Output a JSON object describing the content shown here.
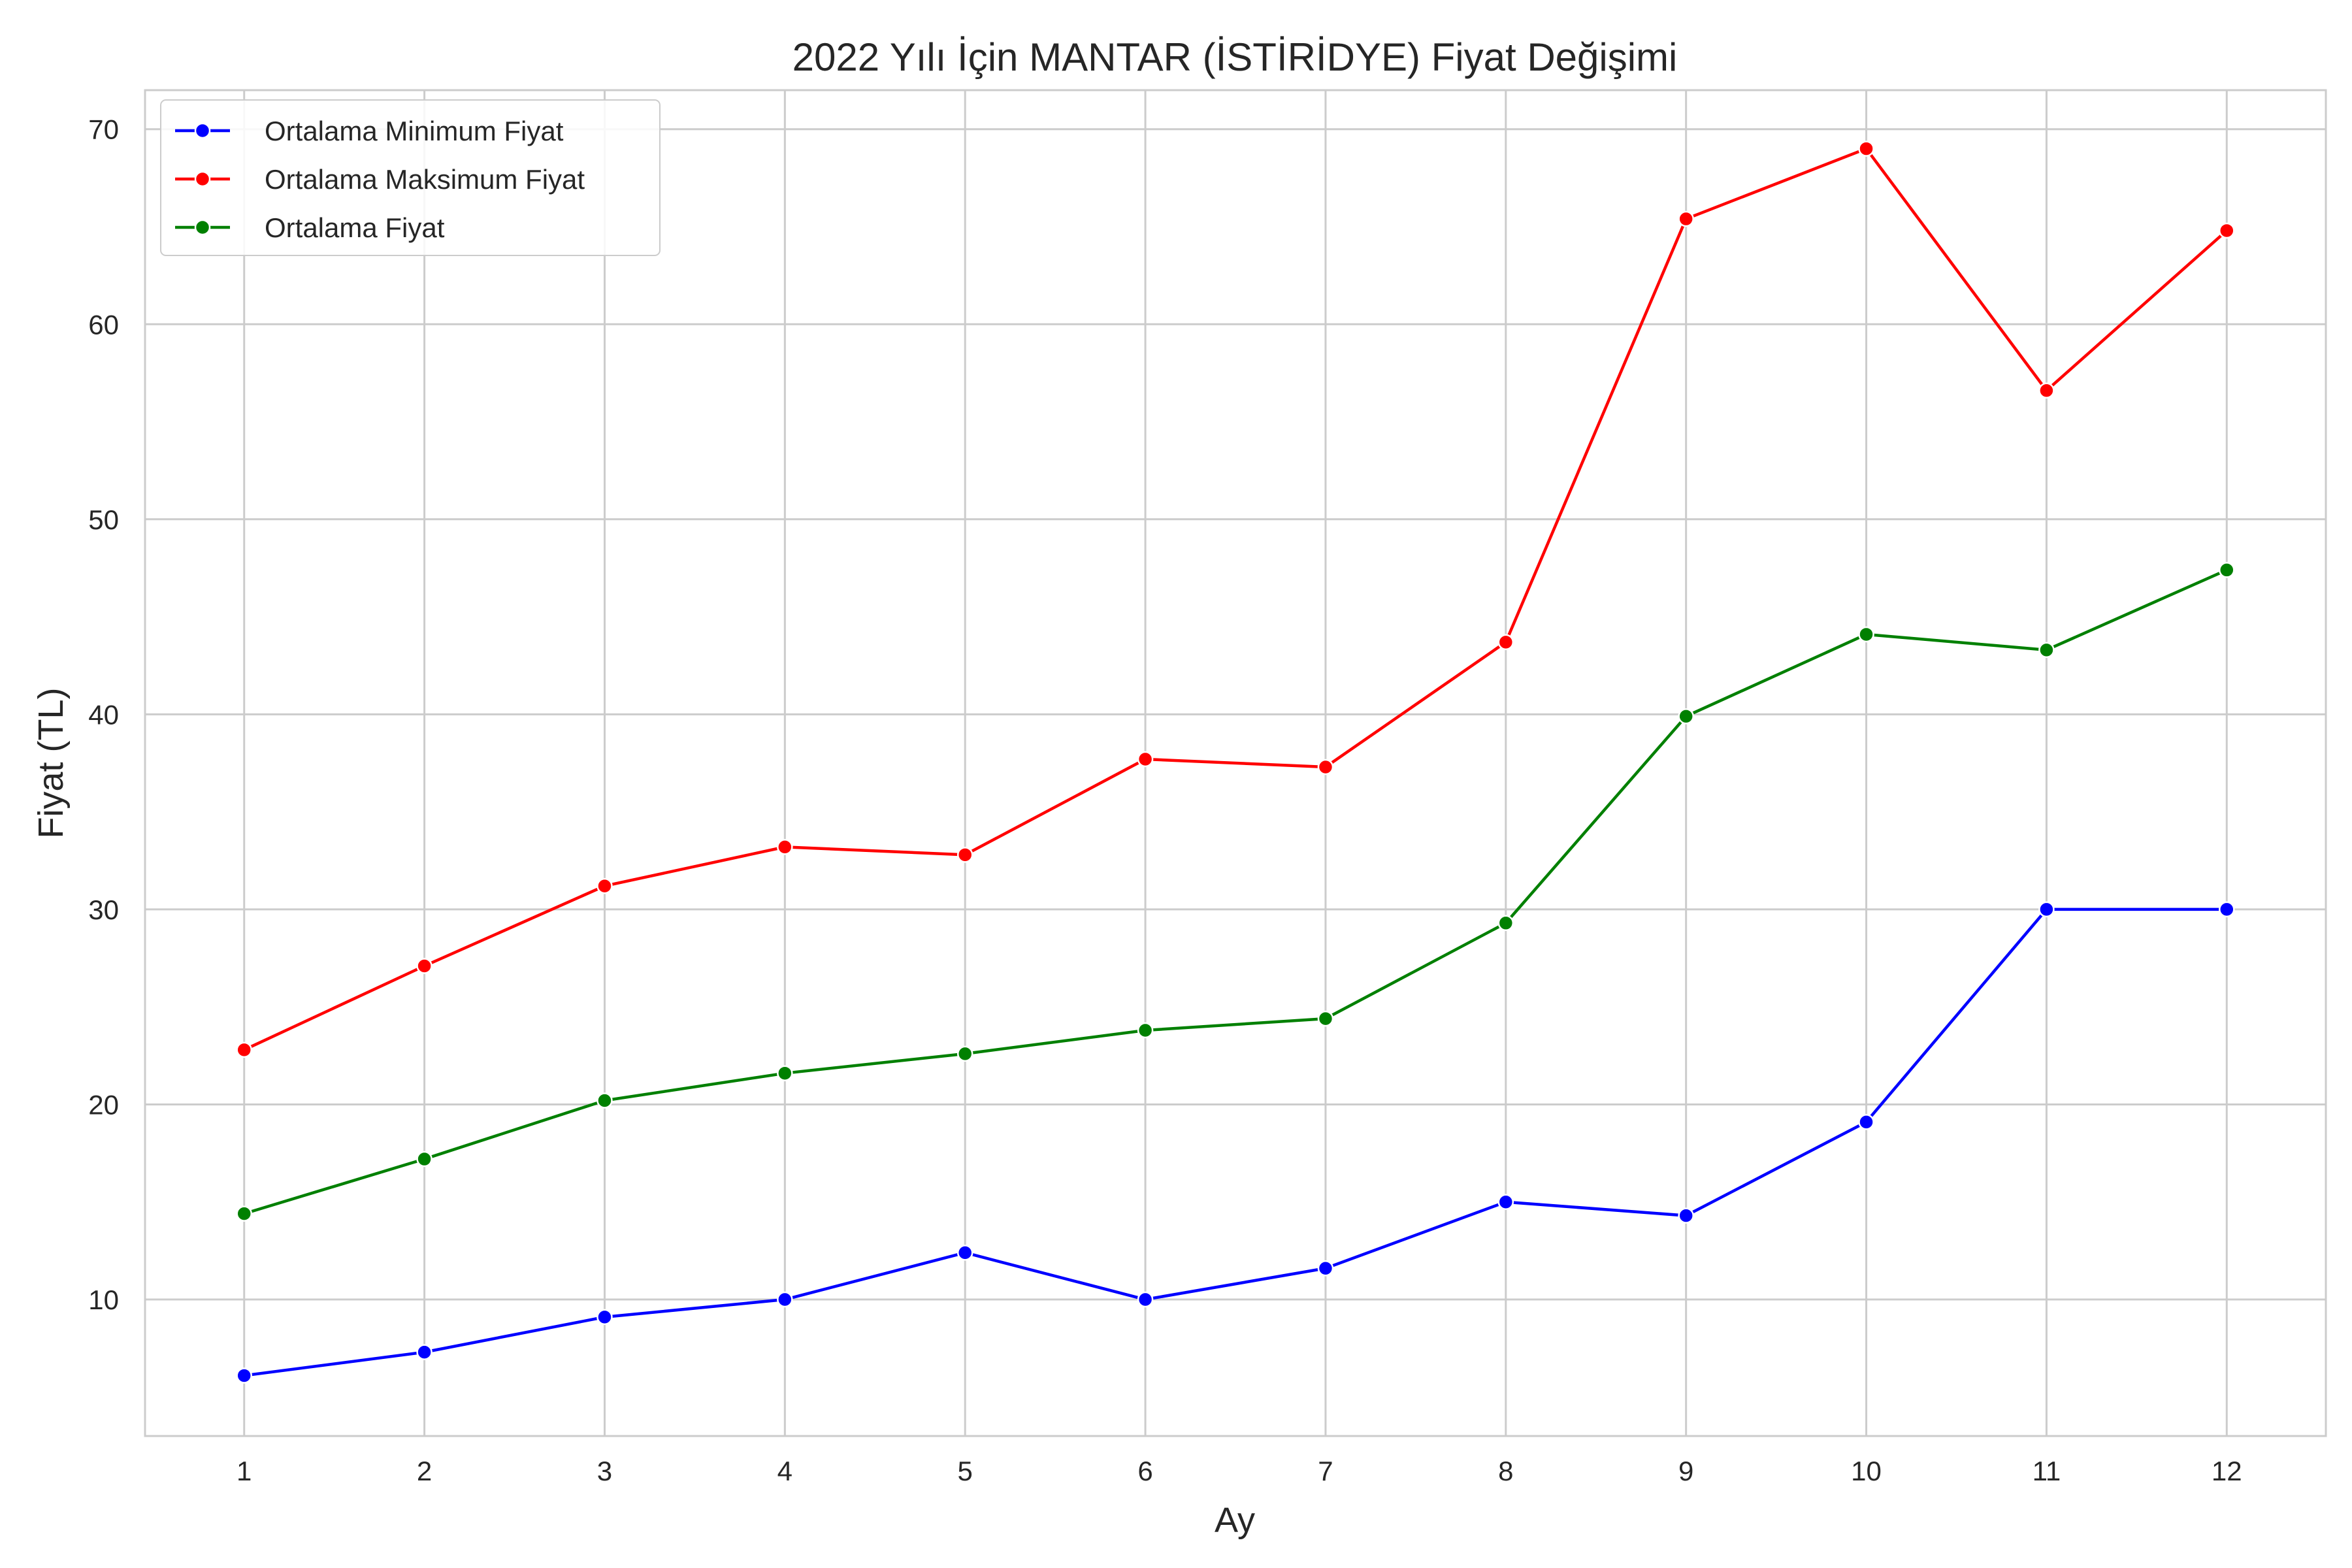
{
  "chart_data": {
    "type": "line",
    "title": "2022 Yılı İçin MANTAR (İSTİRİDYE) Fiyat Değişimi",
    "xlabel": "Ay",
    "ylabel": "Fiyat (TL)",
    "x": [
      1,
      2,
      3,
      4,
      5,
      6,
      7,
      8,
      9,
      10,
      11,
      12
    ],
    "xlim": [
      0.45,
      12.55
    ],
    "ylim": [
      3.0,
      72.0
    ],
    "yticks": [
      10,
      20,
      30,
      40,
      50,
      60,
      70
    ],
    "grid": true,
    "legend_position": "top-left",
    "series": [
      {
        "name": "Ortalama Minimum Fiyat",
        "color": "#0000ff",
        "values": [
          6.1,
          7.3,
          9.1,
          10.0,
          12.4,
          10.0,
          11.6,
          15.0,
          14.3,
          19.1,
          30.0,
          30.0
        ]
      },
      {
        "name": "Ortalama Maksimum Fiyat",
        "color": "#ff0000",
        "values": [
          22.8,
          27.1,
          31.2,
          33.2,
          32.8,
          37.7,
          37.3,
          43.7,
          65.4,
          69.0,
          56.6,
          64.8
        ]
      },
      {
        "name": "Ortalama Fiyat",
        "color": "#008000",
        "values": [
          14.4,
          17.2,
          20.2,
          21.6,
          22.6,
          23.8,
          24.4,
          29.3,
          39.9,
          44.1,
          43.3,
          47.4
        ]
      }
    ]
  }
}
